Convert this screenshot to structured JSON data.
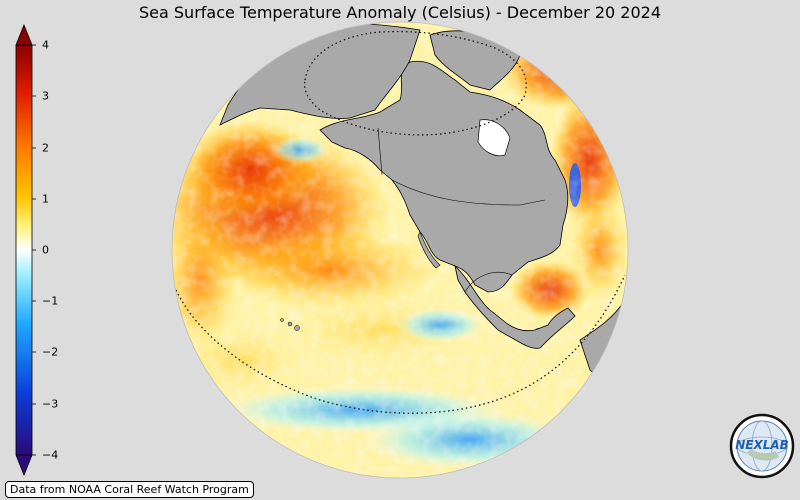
{
  "title": "Sea Surface Temperature Anomaly (Celsius) - December 20 2024",
  "colorbar": {
    "ticks": [
      "4",
      "3",
      "2",
      "1",
      "0",
      "−1",
      "−2",
      "−3",
      "−4"
    ],
    "colors": [
      "#2b0a7a",
      "#0a3ed8",
      "#1fa8ff",
      "#9ef0ff",
      "#ffffff",
      "#fff27a",
      "#ffc400",
      "#ff7a00",
      "#e01e00",
      "#8a0000"
    ]
  },
  "credit": "Data from NOAA Coral Reef Watch Program",
  "logo": {
    "text": "NEXLAB",
    "icon": "nexlab-globe-logo"
  },
  "map": {
    "projection": "orthographic",
    "land_color": "#a9a9a9",
    "features": [
      "north-america",
      "greenland",
      "siberia",
      "arctic-circle-dotted",
      "equator-dotted",
      "us-borders"
    ]
  }
}
